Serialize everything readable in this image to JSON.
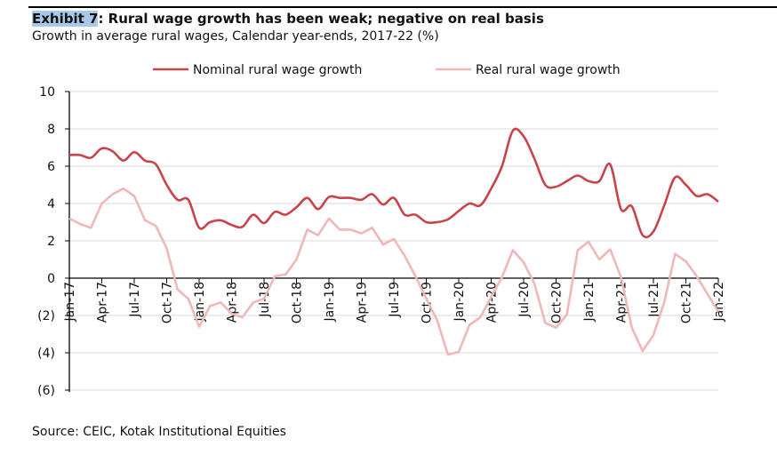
{
  "header": {
    "exhibit": "Exhibit 7",
    "title": ": Rural wage growth has been weak; negative on real basis",
    "subtitle": "Growth in average rural wages, Calendar year-ends, 2017-22 (%)"
  },
  "source": "Source: CEIC, Kotak Institutional Equities",
  "chart_data": {
    "type": "line",
    "title": "Rural wage growth has been weak; negative on real basis",
    "ylim": [
      -6,
      10
    ],
    "yticks": [
      10,
      8,
      6,
      4,
      2,
      0,
      -2,
      -4,
      -6
    ],
    "ytick_labels": [
      "10",
      "8",
      "6",
      "4",
      "2",
      "0",
      "(2)",
      "(4)",
      "(6)"
    ],
    "xtick_labels": [
      "Jan-17",
      "Apr-17",
      "Jul-17",
      "Oct-17",
      "Jan-18",
      "Apr-18",
      "Jul-18",
      "Oct-18",
      "Jan-19",
      "Apr-19",
      "Jul-19",
      "Oct-19",
      "Jan-20",
      "Apr-20",
      "Jul-20",
      "Oct-20",
      "Jan-21",
      "Apr-21",
      "Jul-21",
      "Oct-21",
      "Jan-22"
    ],
    "x_start": "Jan-17",
    "x_end": "Jan-22",
    "frequency": "monthly",
    "grid": true,
    "legend": "top",
    "series": [
      {
        "name": "Nominal rural wage growth",
        "color": "#c8444b",
        "values": [
          6.6,
          6.6,
          6.45,
          6.95,
          6.8,
          6.3,
          6.75,
          6.3,
          6.1,
          5.0,
          4.2,
          4.2,
          2.7,
          3.0,
          3.1,
          2.85,
          2.75,
          3.4,
          2.95,
          3.55,
          3.4,
          3.8,
          4.3,
          3.7,
          4.35,
          4.3,
          4.3,
          4.2,
          4.5,
          3.95,
          4.3,
          3.4,
          3.4,
          3.0,
          3.0,
          3.15,
          3.6,
          4.0,
          3.9,
          4.8,
          6.0,
          7.9,
          7.6,
          6.4,
          5.0,
          4.9,
          5.2,
          5.5,
          5.2,
          5.2,
          6.1,
          3.7,
          3.85,
          2.3,
          2.5,
          3.9,
          5.4,
          5.0,
          4.4,
          4.5,
          4.1
        ]
      },
      {
        "name": "Real rural wage growth",
        "color": "#f0b7b7",
        "values": [
          3.2,
          2.9,
          2.7,
          4.0,
          4.5,
          4.8,
          4.4,
          3.1,
          2.8,
          1.6,
          -0.6,
          -1.1,
          -2.6,
          -1.5,
          -1.3,
          -1.9,
          -2.1,
          -1.3,
          -1.1,
          0.1,
          0.2,
          1.0,
          2.6,
          2.3,
          3.2,
          2.6,
          2.6,
          2.4,
          2.7,
          1.8,
          2.1,
          1.2,
          0.1,
          -1.1,
          -2.25,
          -4.1,
          -3.95,
          -2.5,
          -2.1,
          -1.0,
          0.05,
          1.5,
          0.85,
          -0.3,
          -2.4,
          -2.65,
          -1.95,
          1.5,
          1.95,
          1.0,
          1.55,
          0.05,
          -2.65,
          -3.9,
          -3.05,
          -1.3,
          1.3,
          0.9,
          0.1,
          -0.85,
          -1.8
        ]
      }
    ]
  }
}
